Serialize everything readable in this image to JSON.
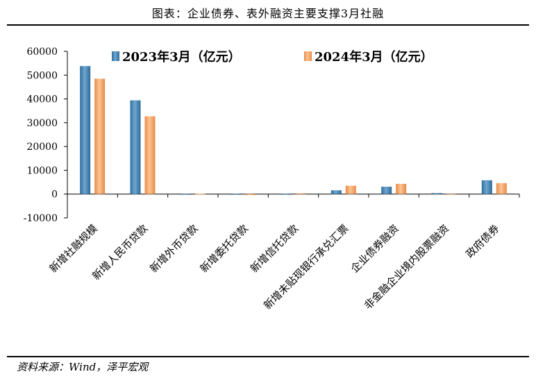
{
  "header": {
    "title": "图表：企业债券、表外融资主要支撑3月社融"
  },
  "footer": {
    "source": "资料来源：Wind，泽平宏观"
  },
  "chart_data": {
    "type": "bar",
    "title": "图表：企业债券、表外融资主要支撑3月社融",
    "xlabel": "",
    "ylabel": "",
    "ylim": [
      -10000,
      60000
    ],
    "yticks": [
      60000,
      50000,
      40000,
      30000,
      20000,
      10000,
      0,
      -10000
    ],
    "grid": false,
    "legend_position": "top",
    "categories": [
      "新增社融规模",
      "新增人民币贷款",
      "新增外币贷款",
      "新增委托贷款",
      "新增信托贷款",
      "新增未贴现银行承兑汇票",
      "企业债券融资",
      "非金融企业境内股票融资",
      "政府债券"
    ],
    "series": [
      {
        "name": "2023年3月（亿元）",
        "color": "#3f7fb0",
        "values": [
          53800,
          39400,
          -100,
          -50,
          -50,
          1600,
          3100,
          400,
          5800
        ]
      },
      {
        "name": "2024年3月（亿元）",
        "color": "#f2a56b",
        "values": [
          48500,
          32700,
          200,
          -400,
          300,
          3500,
          4300,
          0,
          4600
        ]
      }
    ]
  }
}
